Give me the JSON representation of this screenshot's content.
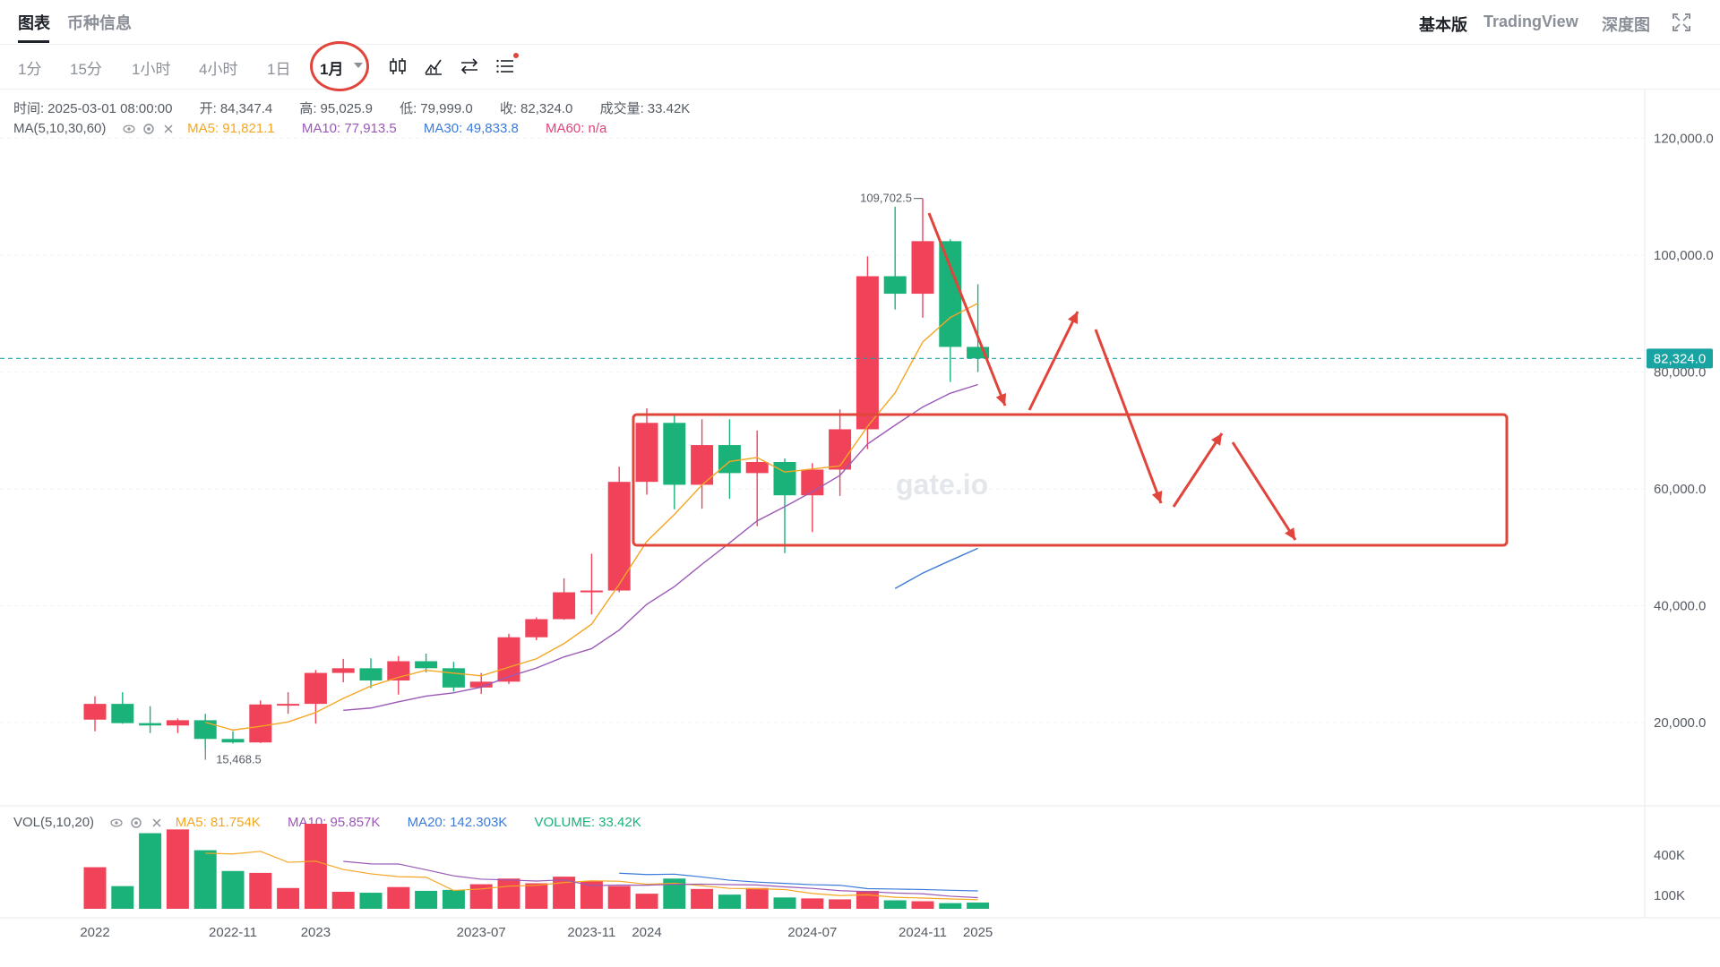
{
  "header": {
    "tabs": [
      {
        "label": "图表",
        "active": true
      },
      {
        "label": "币种信息",
        "active": false
      }
    ],
    "right_tabs": [
      {
        "label": "基本版",
        "active": true
      },
      {
        "label": "TradingView",
        "active": false
      },
      {
        "label": "深度图",
        "active": false
      }
    ]
  },
  "toolbar": {
    "timeframes": [
      "1分",
      "15分",
      "1小时",
      "4小时",
      "1日",
      "1月"
    ],
    "selected": "1月",
    "icons": [
      "candle-type-icon",
      "indicator-icon",
      "swap-icon",
      "settings-list-icon"
    ]
  },
  "info": {
    "time_label": "时间:",
    "time": "2025-03-01 08:00:00",
    "open_label": "开:",
    "open": "84,347.4",
    "high_label": "高:",
    "high": "95,025.9",
    "low_label": "低:",
    "low": "79,999.0",
    "close_label": "收:",
    "close": "82,324.0",
    "vol_label": "成交量:",
    "vol": "33.42K"
  },
  "ma": {
    "label": "MA(5,10,30,60)",
    "ma5": "MA5: 91,821.1",
    "ma10": "MA10: 77,913.5",
    "ma30": "MA30: 49,833.8",
    "ma60": "MA60: n/a"
  },
  "vol": {
    "label": "VOL(5,10,20)",
    "ma5": "MA5: 81.754K",
    "ma10": "MA10: 95.857K",
    "ma20": "MA20: 142.303K",
    "volume": "VOLUME: 33.42K"
  },
  "colors": {
    "up": "#f0435a",
    "down": "#1bb27a",
    "ma5": "#f5a623",
    "ma10": "#9b59b6",
    "ma30": "#3c7bd9",
    "ma60": "#e0437d",
    "price_line": "#1aa3a3",
    "annotation": "#e0443a"
  },
  "watermark": "gate.io",
  "chart_data": {
    "type": "candlestick",
    "x_ticks": [
      "2022",
      "2022-11",
      "2023",
      "2023-07",
      "2023-11",
      "2024",
      "2024-07",
      "2024-11",
      "2025"
    ],
    "y_ticks": [
      "120,000.0",
      "100,000.0",
      "80,000.0",
      "60,000.0",
      "40,000.0",
      "20,000.0"
    ],
    "volume_ticks": [
      "400K",
      "100K"
    ],
    "current_price": "82,324.0",
    "high_label": "109,702.5",
    "low_label": "15,468.5",
    "candles": [
      {
        "o": 20500,
        "h": 24500,
        "l": 18500,
        "c": 23200,
        "v": 220
      },
      {
        "o": 23200,
        "h": 25200,
        "l": 19800,
        "c": 19900,
        "v": 120
      },
      {
        "o": 19900,
        "h": 22800,
        "l": 18200,
        "c": 19500,
        "v": 400
      },
      {
        "o": 19500,
        "h": 20700,
        "l": 18200,
        "c": 20400,
        "v": 420
      },
      {
        "o": 20400,
        "h": 21500,
        "l": 15468.5,
        "c": 17200,
        "v": 310
      },
      {
        "o": 17200,
        "h": 18500,
        "l": 16400,
        "c": 16600,
        "v": 200
      },
      {
        "o": 16600,
        "h": 23800,
        "l": 16500,
        "c": 23100,
        "v": 190
      },
      {
        "o": 23100,
        "h": 25200,
        "l": 21500,
        "c": 23200,
        "v": 110
      },
      {
        "o": 23200,
        "h": 29000,
        "l": 19800,
        "c": 28500,
        "v": 450
      },
      {
        "o": 28500,
        "h": 30900,
        "l": 26900,
        "c": 29300,
        "v": 90
      },
      {
        "o": 29300,
        "h": 31000,
        "l": 25900,
        "c": 27200,
        "v": 85
      },
      {
        "o": 27200,
        "h": 31400,
        "l": 24800,
        "c": 30500,
        "v": 115
      },
      {
        "o": 30500,
        "h": 31800,
        "l": 28600,
        "c": 29300,
        "v": 95
      },
      {
        "o": 29300,
        "h": 30400,
        "l": 25300,
        "c": 26000,
        "v": 100
      },
      {
        "o": 26000,
        "h": 28500,
        "l": 24900,
        "c": 27000,
        "v": 130
      },
      {
        "o": 27000,
        "h": 35200,
        "l": 26600,
        "c": 34600,
        "v": 160
      },
      {
        "o": 34600,
        "h": 38000,
        "l": 34100,
        "c": 37700,
        "v": 135
      },
      {
        "o": 37700,
        "h": 44700,
        "l": 37600,
        "c": 42300,
        "v": 170
      },
      {
        "o": 42300,
        "h": 48900,
        "l": 38500,
        "c": 42600,
        "v": 145
      },
      {
        "o": 42600,
        "h": 63800,
        "l": 42300,
        "c": 61200,
        "v": 120
      },
      {
        "o": 61200,
        "h": 73800,
        "l": 59000,
        "c": 71300,
        "v": 80
      },
      {
        "o": 71300,
        "h": 72700,
        "l": 56500,
        "c": 60700,
        "v": 160
      },
      {
        "o": 60700,
        "h": 71900,
        "l": 56600,
        "c": 67500,
        "v": 105
      },
      {
        "o": 67500,
        "h": 71900,
        "l": 58300,
        "c": 62700,
        "v": 75
      },
      {
        "o": 62700,
        "h": 70000,
        "l": 53600,
        "c": 64600,
        "v": 110
      },
      {
        "o": 64600,
        "h": 65200,
        "l": 49000,
        "c": 58900,
        "v": 60
      },
      {
        "o": 58900,
        "h": 64400,
        "l": 52600,
        "c": 63300,
        "v": 55
      },
      {
        "o": 63300,
        "h": 73600,
        "l": 58800,
        "c": 70200,
        "v": 50
      },
      {
        "o": 70200,
        "h": 99800,
        "l": 66800,
        "c": 96400,
        "v": 95
      },
      {
        "o": 96400,
        "h": 108300,
        "l": 90700,
        "c": 93400,
        "v": 45
      },
      {
        "o": 93400,
        "h": 109702.5,
        "l": 89300,
        "c": 102400,
        "v": 40
      },
      {
        "o": 102400,
        "h": 102700,
        "l": 78300,
        "c": 84300,
        "v": 30
      },
      {
        "o": 84300,
        "h": 95025.9,
        "l": 79999,
        "c": 82324,
        "v": 33
      }
    ]
  }
}
